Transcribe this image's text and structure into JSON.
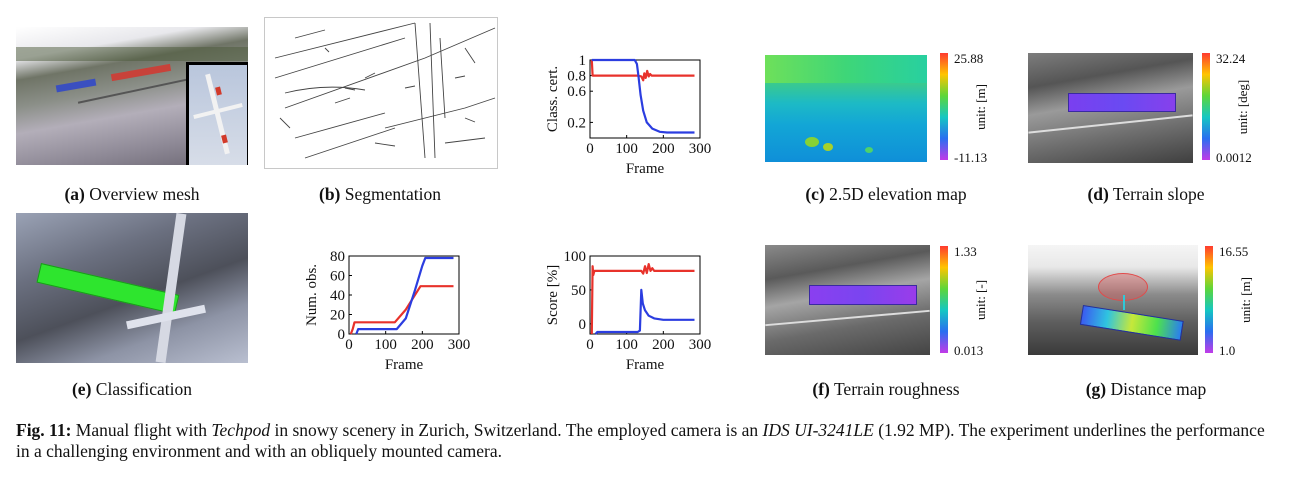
{
  "panels": {
    "a": {
      "letter": "(a)",
      "label": "Overview mesh"
    },
    "b": {
      "letter": "(b)",
      "label": "Segmentation"
    },
    "c": {
      "letter": "(c)",
      "label": "2.5D elevation map",
      "cb_max": "25.88",
      "cb_min": "-11.13",
      "unit": "unit: [m]"
    },
    "d": {
      "letter": "(d)",
      "label": "Terrain slope",
      "cb_max": "32.24",
      "cb_min": "0.0012",
      "unit": "unit: [deg]"
    },
    "e": {
      "letter": "(e)",
      "label": "Classification"
    },
    "f": {
      "letter": "(f)",
      "label": "Terrain roughness",
      "cb_max": "1.33",
      "cb_min": "0.013",
      "unit": "unit: [-]"
    },
    "g": {
      "letter": "(g)",
      "label": "Distance map",
      "cb_max": "16.55",
      "cb_min": "1.0",
      "unit": "unit: [m]"
    }
  },
  "chart_data": [
    {
      "type": "line",
      "title": "",
      "xlabel": "Frame",
      "ylabel": "Class. cert.",
      "xlim": [
        0,
        300
      ],
      "ylim": [
        0,
        1
      ],
      "xticks": [
        0,
        100,
        200,
        300
      ],
      "yticks": [
        0.2,
        0.6,
        0.8,
        1
      ],
      "ytick_labels": [
        "0.2",
        "0.6",
        "0.8",
        "1"
      ],
      "series": [
        {
          "name": "red",
          "color": "#e8322b",
          "points": [
            [
              5,
              1
            ],
            [
              7,
              0.8
            ],
            [
              130,
              0.8
            ],
            [
              140,
              0.79
            ],
            [
              145,
              0.74
            ],
            [
              148,
              0.83
            ],
            [
              152,
              0.77
            ],
            [
              156,
              0.86
            ],
            [
              160,
              0.79
            ],
            [
              164,
              0.82
            ],
            [
              168,
              0.8
            ],
            [
              285,
              0.8
            ]
          ]
        },
        {
          "name": "blue",
          "color": "#2b3de0",
          "points": [
            [
              5,
              1
            ],
            [
              122,
              1
            ],
            [
              128,
              0.95
            ],
            [
              132,
              0.8
            ],
            [
              138,
              0.55
            ],
            [
              145,
              0.35
            ],
            [
              155,
              0.2
            ],
            [
              170,
              0.12
            ],
            [
              190,
              0.08
            ],
            [
              210,
              0.07
            ],
            [
              285,
              0.07
            ]
          ]
        }
      ]
    },
    {
      "type": "line",
      "title": "",
      "xlabel": "Frame",
      "ylabel": "Num. obs.",
      "xlim": [
        0,
        300
      ],
      "ylim": [
        0,
        80
      ],
      "xticks": [
        0,
        100,
        200,
        300
      ],
      "yticks": [
        0,
        20,
        40,
        60,
        80
      ],
      "series": [
        {
          "name": "red",
          "color": "#e8322b",
          "points": [
            [
              5,
              0
            ],
            [
              10,
              5
            ],
            [
              15,
              12
            ],
            [
              125,
              12
            ],
            [
              155,
              25
            ],
            [
              195,
              49
            ],
            [
              285,
              49
            ]
          ]
        },
        {
          "name": "blue",
          "color": "#2b3de0",
          "points": [
            [
              20,
              0
            ],
            [
              25,
              5
            ],
            [
              130,
              5
            ],
            [
              155,
              16
            ],
            [
              180,
              45
            ],
            [
              200,
              70
            ],
            [
              208,
              78
            ],
            [
              285,
              78
            ]
          ]
        }
      ]
    },
    {
      "type": "line",
      "title": "",
      "xlabel": "Frame",
      "ylabel": "Score [%]",
      "xlim": [
        0,
        300
      ],
      "ylim": [
        -15,
        100
      ],
      "xticks": [
        0,
        100,
        200,
        300
      ],
      "yticks": [
        0,
        50,
        100
      ],
      "series": [
        {
          "name": "red",
          "color": "#e8322b",
          "points": [
            [
              5,
              -15
            ],
            [
              7,
              85
            ],
            [
              9,
              72
            ],
            [
              12,
              78
            ],
            [
              140,
              78
            ],
            [
              145,
              74
            ],
            [
              150,
              85
            ],
            [
              155,
              75
            ],
            [
              160,
              88
            ],
            [
              165,
              78
            ],
            [
              170,
              82
            ],
            [
              175,
              78
            ],
            [
              285,
              78
            ]
          ]
        },
        {
          "name": "blue",
          "color": "#2b3de0",
          "points": [
            [
              15,
              -15
            ],
            [
              20,
              -12
            ],
            [
              130,
              -12
            ],
            [
              136,
              -10
            ],
            [
              140,
              50
            ],
            [
              144,
              30
            ],
            [
              150,
              20
            ],
            [
              160,
              12
            ],
            [
              175,
              8
            ],
            [
              200,
              6
            ],
            [
              285,
              6
            ]
          ]
        }
      ]
    }
  ],
  "figure_caption": {
    "fig_label": "Fig. 11:",
    "t1": " Manual flight with ",
    "techpod": "Techpod",
    "t2": " in snowy scenery in Zurich, Switzerland. The employed camera is an ",
    "camera": "IDS UI-3241LE",
    "t3": " (1.92 MP). The experiment underlines the performance in a challenging environment and with an obliquely mounted camera."
  }
}
